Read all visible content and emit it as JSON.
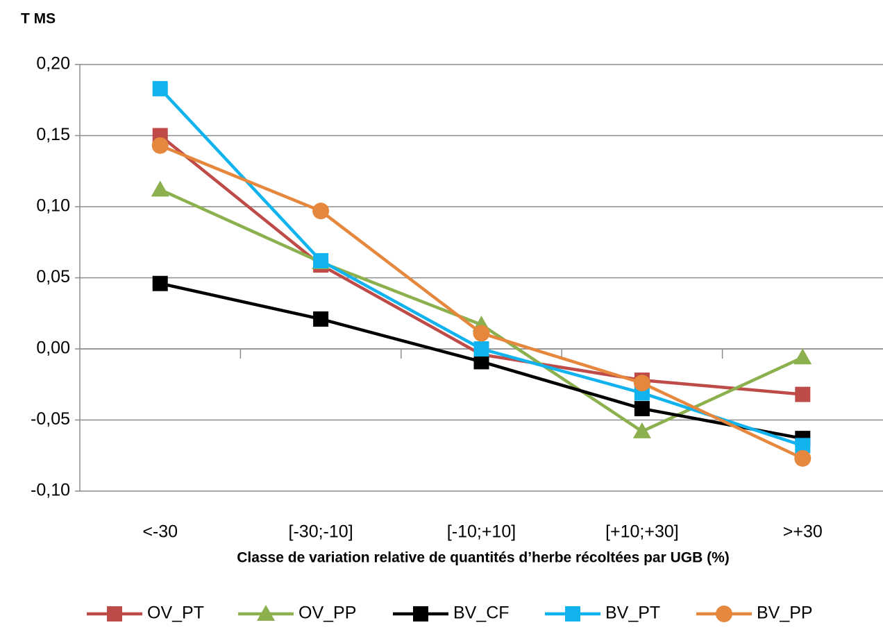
{
  "chart_data": {
    "type": "line",
    "y_label": "T MS",
    "x_label": "Classe de variation relative de quantités d’herbe  récoltées par UGB (%)",
    "categories": [
      "<-30",
      "[-30;-10]",
      "[-10;+10]",
      "[+10;+30]",
      ">+30"
    ],
    "series": [
      {
        "name": "OV_PT",
        "color": "#be4b48",
        "marker": "square",
        "values": [
          0.15,
          0.059,
          -0.004,
          -0.022,
          -0.032
        ]
      },
      {
        "name": "OV_PP",
        "color": "#8cb04d",
        "marker": "triangle",
        "values": [
          0.112,
          0.061,
          0.017,
          -0.058,
          -0.006
        ]
      },
      {
        "name": "BV_CF",
        "color": "#000000",
        "marker": "square",
        "values": [
          0.046,
          0.021,
          -0.009,
          -0.042,
          -0.063
        ]
      },
      {
        "name": "BV_PT",
        "color": "#11b3ef",
        "marker": "square",
        "values": [
          0.183,
          0.062,
          0.0,
          -0.031,
          -0.068
        ]
      },
      {
        "name": "BV_PP",
        "color": "#e5873d",
        "marker": "circle",
        "values": [
          0.143,
          0.097,
          0.011,
          -0.024,
          -0.077
        ]
      }
    ],
    "ylim": [
      -0.1,
      0.2
    ],
    "yticks": [
      {
        "value": -0.1,
        "label": "-0,10"
      },
      {
        "value": -0.05,
        "label": "-0,05"
      },
      {
        "value": 0,
        "label": "0,00"
      },
      {
        "value": 0.05,
        "label": "0,05"
      },
      {
        "value": 0.1,
        "label": "0,10"
      },
      {
        "value": 0.15,
        "label": "0,15"
      },
      {
        "value": 0.2,
        "label": "0,20"
      }
    ],
    "grid": true,
    "legend": "bottom"
  }
}
